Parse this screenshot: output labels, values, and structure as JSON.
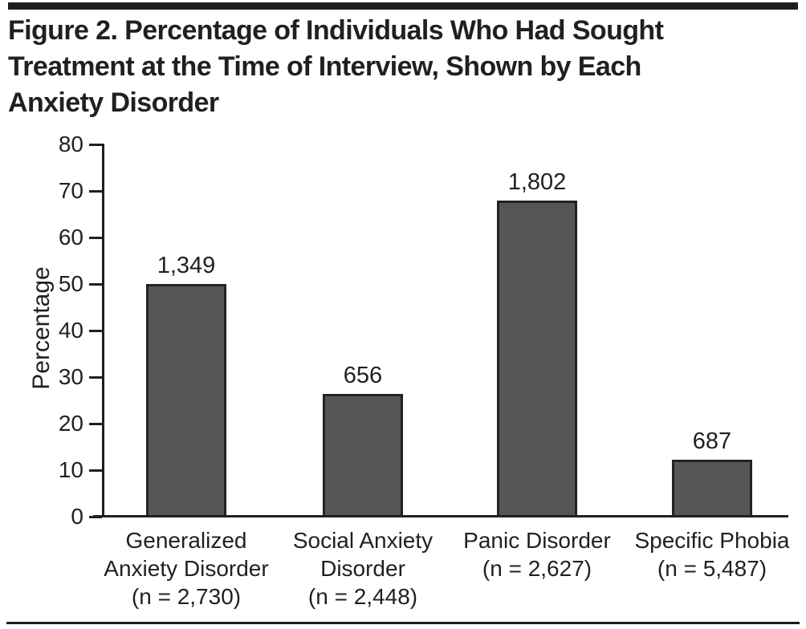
{
  "figure": {
    "title": "Figure 2. Percentage of Individuals Who Had Sought\nTreatment at the Time of Interview, Shown by Each\nAnxiety Disorder",
    "text_color": "#231f20",
    "rule_color": "#1d1d1d"
  },
  "chart_data": {
    "type": "bar",
    "title": "Figure 2. Percentage of Individuals Who Had Sought Treatment at the Time of Interview, Shown by Each Anxiety Disorder",
    "xlabel": "",
    "ylabel": "Percentage",
    "ylim": [
      0,
      80
    ],
    "yticks": [
      0,
      10,
      20,
      30,
      40,
      50,
      60,
      70,
      80
    ],
    "grid": false,
    "legend": "none",
    "categories": [
      "Generalized\nAnxiety Disorder\n(n = 2,730)",
      "Social Anxiety\nDisorder\n(n = 2,448)",
      "Panic Disorder\n(n = 2,627)",
      "Specific Phobia\n(n = 5,487)"
    ],
    "values": [
      50,
      26.4,
      68,
      12.3
    ],
    "bar_value_labels": [
      "1,349",
      "656",
      "1,802",
      "687"
    ],
    "bar_color": "#565659",
    "bar_border_color": "#232323",
    "text_color": "#231f20"
  }
}
